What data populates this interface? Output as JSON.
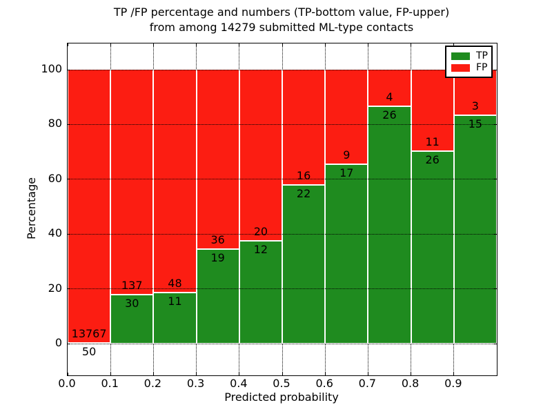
{
  "figure": {
    "title_line1": "TP /FP percentage and numbers (TP-bottom value, FP-upper)",
    "title_line2": "from among 14279 submitted ML-type contacts",
    "background_color": "#ffffff"
  },
  "chart_data": {
    "type": "bar",
    "stacked": true,
    "stack_unit": "percent-of-bin-total",
    "title": "TP /FP percentage and numbers (TP-bottom value, FP-upper) from among 14279 submitted ML-type contacts",
    "xlabel": "Predicted probability",
    "ylabel": "Percentage",
    "x_tick_labels": [
      "0.0",
      "0.1",
      "0.2",
      "0.3",
      "0.4",
      "0.5",
      "0.6",
      "0.7",
      "0.8",
      "0.9"
    ],
    "y_ticks": [
      0,
      20,
      40,
      60,
      80,
      100
    ],
    "y_tick_labels": [
      "0",
      "20",
      "40",
      "60",
      "80",
      "100"
    ],
    "xlim": [
      0.0,
      1.0
    ],
    "ylim": [
      -11.6,
      109.6
    ],
    "grid": "dotted-black",
    "categories": [
      "0.0-0.1",
      "0.1-0.2",
      "0.2-0.3",
      "0.3-0.4",
      "0.4-0.5",
      "0.5-0.6",
      "0.6-0.7",
      "0.7-0.8",
      "0.8-0.9",
      "0.9-1.0"
    ],
    "series": [
      {
        "name": "TP",
        "color": "#1F8B1F",
        "counts": [
          50,
          30,
          11,
          19,
          12,
          22,
          17,
          26,
          26,
          15
        ]
      },
      {
        "name": "FP",
        "color": "#FC1D12",
        "counts": [
          13767,
          137,
          48,
          36,
          20,
          16,
          9,
          4,
          11,
          3
        ]
      }
    ],
    "tp_percent_of_bin": [
      0.36,
      17.96,
      18.64,
      34.55,
      37.5,
      57.89,
      65.38,
      86.67,
      70.27,
      83.33
    ],
    "legend": {
      "position": "upper-right",
      "entries": [
        {
          "label": "TP",
          "color": "#1F8B1F"
        },
        {
          "label": "FP",
          "color": "#FC1D12"
        }
      ]
    }
  }
}
